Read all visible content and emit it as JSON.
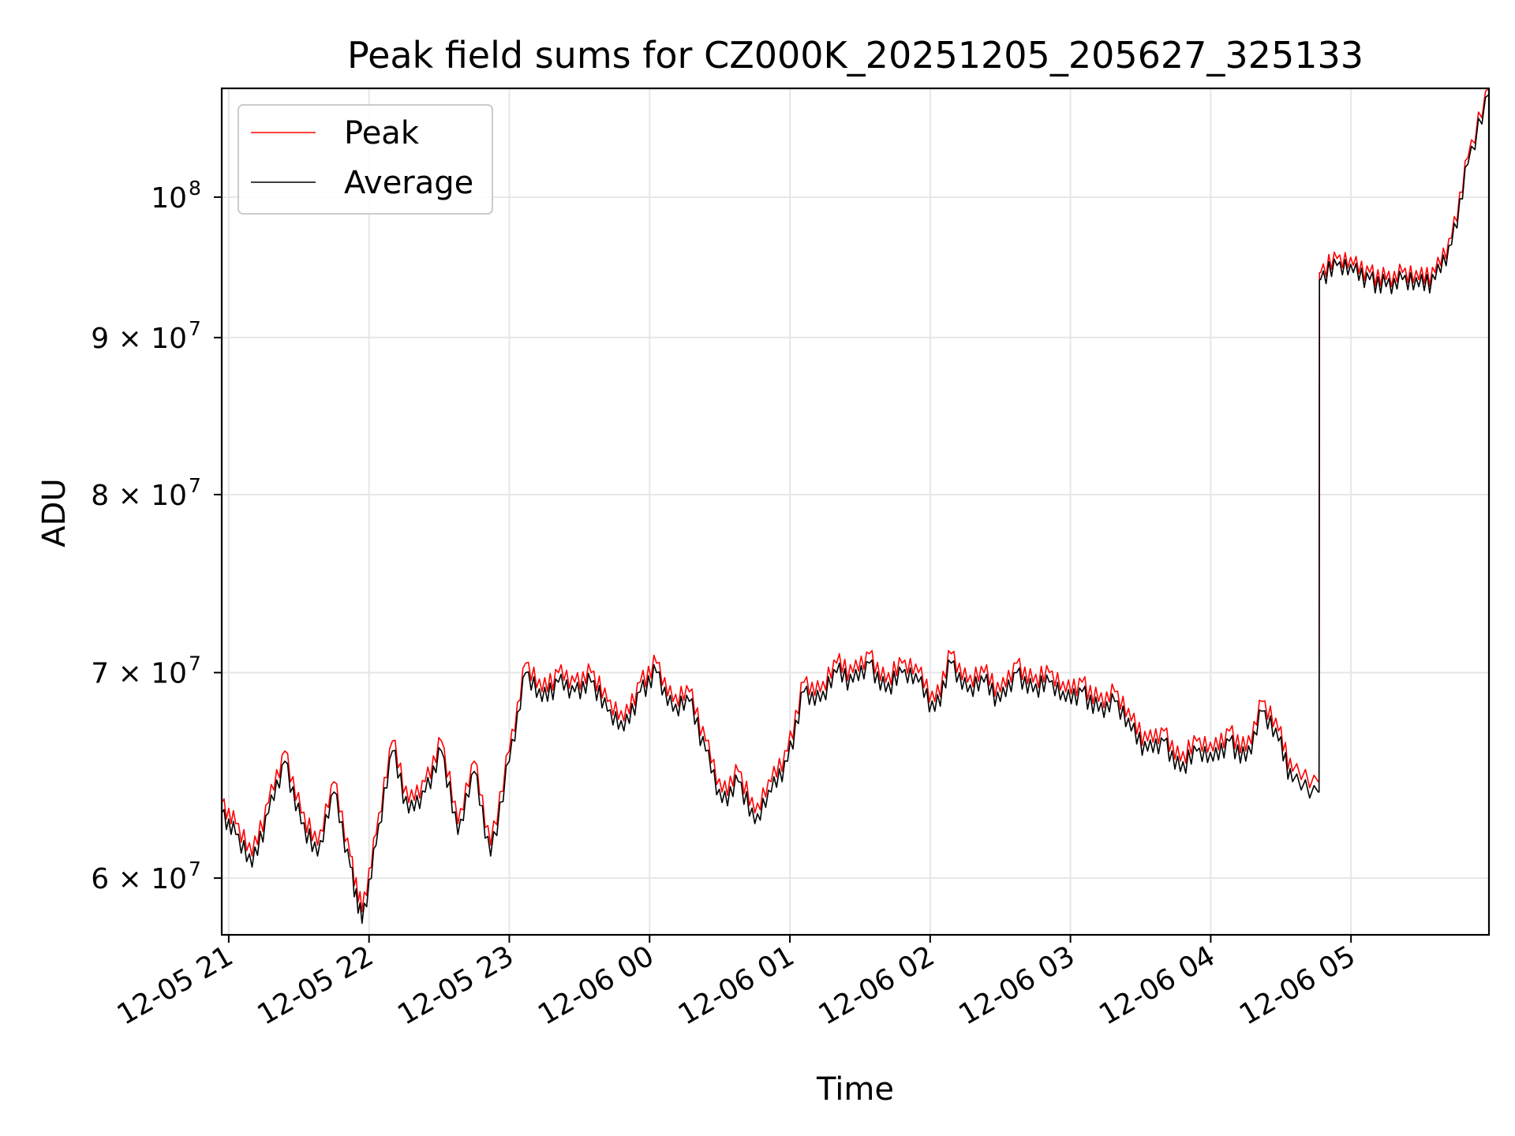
{
  "chart_data": {
    "type": "line",
    "title": "Peak field sums for CZ000K_20251205_205627_325133",
    "xlabel": "Time",
    "ylabel": "ADU",
    "yscale": "log",
    "ylim": [
      57500000,
      108500000
    ],
    "xlim": [
      "2025-12-05 20:57",
      "2025-12-06 05:59"
    ],
    "x_ticks": [
      {
        "t": "2025-12-05 21:00",
        "label": "12-05 21"
      },
      {
        "t": "2025-12-05 22:00",
        "label": "12-05 22"
      },
      {
        "t": "2025-12-05 23:00",
        "label": "12-05 23"
      },
      {
        "t": "2025-12-06 00:00",
        "label": "12-06 00"
      },
      {
        "t": "2025-12-06 01:00",
        "label": "12-06 01"
      },
      {
        "t": "2025-12-06 02:00",
        "label": "12-06 02"
      },
      {
        "t": "2025-12-06 03:00",
        "label": "12-06 03"
      },
      {
        "t": "2025-12-06 04:00",
        "label": "12-06 04"
      },
      {
        "t": "2025-12-06 05:00",
        "label": "12-06 05"
      }
    ],
    "y_ticks": [
      {
        "value": 60000000,
        "mantissa": "6",
        "exp": "7"
      },
      {
        "value": 70000000,
        "mantissa": "7",
        "exp": "7"
      },
      {
        "value": 80000000,
        "mantissa": "8",
        "exp": "7"
      },
      {
        "value": 90000000,
        "mantissa": "9",
        "exp": "7"
      },
      {
        "value": 100000000,
        "mantissa": "",
        "exp": "8"
      }
    ],
    "grid": true,
    "legend_position": "top-left",
    "series": [
      {
        "name": "Peak",
        "color": "#ff0000",
        "x": [
          "2025-12-05 20:57",
          "2025-12-05 21:03",
          "2025-12-05 21:10",
          "2025-12-05 21:17",
          "2025-12-05 21:24",
          "2025-12-05 21:31",
          "2025-12-05 21:38",
          "2025-12-05 21:45",
          "2025-12-05 21:52",
          "2025-12-05 21:57",
          "2025-12-05 22:03",
          "2025-12-05 22:10",
          "2025-12-05 22:17",
          "2025-12-05 22:24",
          "2025-12-05 22:31",
          "2025-12-05 22:38",
          "2025-12-05 22:45",
          "2025-12-05 22:52",
          "2025-12-05 23:00",
          "2025-12-05 23:07",
          "2025-12-05 23:14",
          "2025-12-05 23:21",
          "2025-12-05 23:28",
          "2025-12-05 23:35",
          "2025-12-05 23:42",
          "2025-12-05 23:49",
          "2025-12-05 23:56",
          "2025-12-06 00:03",
          "2025-12-06 00:10",
          "2025-12-06 00:17",
          "2025-12-06 00:24",
          "2025-12-06 00:31",
          "2025-12-06 00:38",
          "2025-12-06 00:45",
          "2025-12-06 00:52",
          "2025-12-06 00:59",
          "2025-12-06 01:06",
          "2025-12-06 01:13",
          "2025-12-06 01:20",
          "2025-12-06 01:27",
          "2025-12-06 01:34",
          "2025-12-06 01:41",
          "2025-12-06 01:48",
          "2025-12-06 01:55",
          "2025-12-06 02:02",
          "2025-12-06 02:09",
          "2025-12-06 02:16",
          "2025-12-06 02:23",
          "2025-12-06 02:30",
          "2025-12-06 02:37",
          "2025-12-06 02:44",
          "2025-12-06 02:51",
          "2025-12-06 02:58",
          "2025-12-06 03:05",
          "2025-12-06 03:12",
          "2025-12-06 03:19",
          "2025-12-06 03:26",
          "2025-12-06 03:33",
          "2025-12-06 03:40",
          "2025-12-06 03:47",
          "2025-12-06 03:54",
          "2025-12-06 04:01",
          "2025-12-06 04:08",
          "2025-12-06 04:15",
          "2025-12-06 04:22",
          "2025-12-06 04:29",
          "2025-12-06 04:35",
          "2025-12-06 04:46",
          "2025-12-06 04:47",
          "2025-12-06 04:54",
          "2025-12-06 05:01",
          "2025-12-06 05:08",
          "2025-12-06 05:15",
          "2025-12-06 05:22",
          "2025-12-06 05:29",
          "2025-12-06 05:36",
          "2025-12-06 05:43",
          "2025-12-06 05:50",
          "2025-12-06 05:59"
        ],
        "y": [
          63500000,
          62500000,
          61000000,
          63500000,
          66000000,
          63000000,
          61500000,
          64500000,
          61000000,
          58500000,
          62000000,
          66500000,
          63500000,
          64500000,
          66500000,
          62500000,
          65500000,
          61500000,
          66000000,
          70500000,
          69000000,
          70000000,
          69500000,
          70000000,
          68500000,
          67500000,
          69500000,
          70500000,
          68500000,
          69000000,
          66500000,
          64000000,
          65000000,
          63000000,
          64500000,
          66000000,
          69500000,
          69000000,
          70500000,
          70000000,
          71000000,
          69500000,
          70500000,
          70000000,
          68500000,
          71000000,
          69500000,
          70000000,
          69000000,
          70500000,
          69500000,
          70000000,
          69000000,
          69500000,
          68500000,
          69000000,
          67500000,
          66500000,
          67000000,
          65500000,
          66500000,
          66000000,
          67000000,
          66000000,
          68500000,
          67000000,
          65000000,
          64500000,
          94500000,
          95500000,
          95000000,
          94500000,
          94000000,
          94500000,
          94000000,
          94500000,
          97000000,
          103000000,
          108500000
        ]
      },
      {
        "name": "Average",
        "color": "#000000",
        "x": [
          "2025-12-05 20:57",
          "2025-12-05 21:03",
          "2025-12-05 21:10",
          "2025-12-05 21:17",
          "2025-12-05 21:24",
          "2025-12-05 21:31",
          "2025-12-05 21:38",
          "2025-12-05 21:45",
          "2025-12-05 21:52",
          "2025-12-05 21:57",
          "2025-12-05 22:03",
          "2025-12-05 22:10",
          "2025-12-05 22:17",
          "2025-12-05 22:24",
          "2025-12-05 22:31",
          "2025-12-05 22:38",
          "2025-12-05 22:45",
          "2025-12-05 22:52",
          "2025-12-05 23:00",
          "2025-12-05 23:07",
          "2025-12-05 23:14",
          "2025-12-05 23:21",
          "2025-12-05 23:28",
          "2025-12-05 23:35",
          "2025-12-05 23:42",
          "2025-12-05 23:49",
          "2025-12-05 23:56",
          "2025-12-06 00:03",
          "2025-12-06 00:10",
          "2025-12-06 00:17",
          "2025-12-06 00:24",
          "2025-12-06 00:31",
          "2025-12-06 00:38",
          "2025-12-06 00:45",
          "2025-12-06 00:52",
          "2025-12-06 00:59",
          "2025-12-06 01:06",
          "2025-12-06 01:13",
          "2025-12-06 01:20",
          "2025-12-06 01:27",
          "2025-12-06 01:34",
          "2025-12-06 01:41",
          "2025-12-06 01:48",
          "2025-12-06 01:55",
          "2025-12-06 02:02",
          "2025-12-06 02:09",
          "2025-12-06 02:16",
          "2025-12-06 02:23",
          "2025-12-06 02:30",
          "2025-12-06 02:37",
          "2025-12-06 02:44",
          "2025-12-06 02:51",
          "2025-12-06 02:58",
          "2025-12-06 03:05",
          "2025-12-06 03:12",
          "2025-12-06 03:19",
          "2025-12-06 03:26",
          "2025-12-06 03:33",
          "2025-12-06 03:40",
          "2025-12-06 03:47",
          "2025-12-06 03:54",
          "2025-12-06 04:01",
          "2025-12-06 04:08",
          "2025-12-06 04:15",
          "2025-12-06 04:22",
          "2025-12-06 04:29",
          "2025-12-06 04:35",
          "2025-12-06 04:46",
          "2025-12-06 04:47",
          "2025-12-06 04:54",
          "2025-12-06 05:01",
          "2025-12-06 05:08",
          "2025-12-06 05:15",
          "2025-12-06 05:22",
          "2025-12-06 05:29",
          "2025-12-06 05:36",
          "2025-12-06 05:43",
          "2025-12-06 05:50",
          "2025-12-06 05:59"
        ],
        "y": [
          63000000,
          62000000,
          60500000,
          63000000,
          65500000,
          62500000,
          61000000,
          64000000,
          60500000,
          58000000,
          61500000,
          66000000,
          63000000,
          64000000,
          66000000,
          62000000,
          65000000,
          61000000,
          65500000,
          70000000,
          68500000,
          69500000,
          69000000,
          69500000,
          68000000,
          67000000,
          69000000,
          70000000,
          68000000,
          68500000,
          66000000,
          63500000,
          64500000,
          62500000,
          64000000,
          65500000,
          69000000,
          68500000,
          70000000,
          69500000,
          70500000,
          69000000,
          70000000,
          69500000,
          68000000,
          70500000,
          69000000,
          69500000,
          68500000,
          70000000,
          69000000,
          69500000,
          68500000,
          69000000,
          68000000,
          68500000,
          67000000,
          66000000,
          66500000,
          65000000,
          66000000,
          65500000,
          66500000,
          65500000,
          68000000,
          66500000,
          64500000,
          64000000,
          94000000,
          95000000,
          94500000,
          94000000,
          93500000,
          94000000,
          93500000,
          94000000,
          96500000,
          102500000,
          108000000
        ]
      }
    ]
  }
}
